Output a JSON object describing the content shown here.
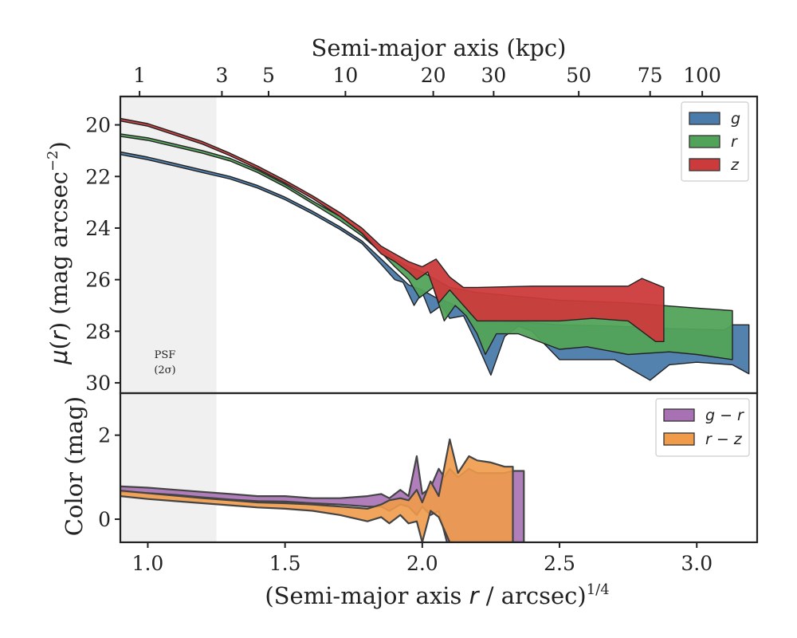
{
  "chart_data": [
    {
      "type": "area",
      "panel": "surface-brightness",
      "title": "",
      "xlabel": "(Semi-major axis r / arcsec)^1/4",
      "ylabel": "μ(r) (mag arcsec⁻²)",
      "top_axis": {
        "label": "Semi-major axis (kpc)",
        "ticks": [
          {
            "label": "1",
            "x": 0.97
          },
          {
            "label": "3",
            "x": 1.27
          },
          {
            "label": "5",
            "x": 1.44
          },
          {
            "label": "10",
            "x": 1.72
          },
          {
            "label": "20",
            "x": 2.04
          },
          {
            "label": "30",
            "x": 2.26
          },
          {
            "label": "50",
            "x": 2.57
          },
          {
            "label": "75",
            "x": 2.83
          },
          {
            "label": "100",
            "x": 3.02
          }
        ]
      },
      "xlim": [
        0.9,
        3.22
      ],
      "ylim": [
        30.4,
        18.9
      ],
      "y_inverted": true,
      "y_ticks": [
        "20",
        "22",
        "24",
        "26",
        "28",
        "30"
      ],
      "x_ticks": [
        "1.0",
        "1.5",
        "2.0",
        "2.5",
        "3.0"
      ],
      "psf_region": {
        "x_max": 1.25,
        "label_line1": "PSF",
        "label_line2": "(2σ)"
      },
      "legend": {
        "position": "top-right"
      },
      "series": [
        {
          "name": "g",
          "color": "#4a7bab",
          "upper": [
            [
              0.9,
              21.05
            ],
            [
              1.0,
              21.25
            ],
            [
              1.1,
              21.5
            ],
            [
              1.2,
              21.75
            ],
            [
              1.3,
              22.0
            ],
            [
              1.4,
              22.35
            ],
            [
              1.5,
              22.8
            ],
            [
              1.6,
              23.35
            ],
            [
              1.7,
              23.95
            ],
            [
              1.78,
              24.5
            ],
            [
              1.85,
              25.2
            ],
            [
              1.9,
              25.7
            ],
            [
              1.95,
              26.2
            ],
            [
              2.0,
              26.4
            ],
            [
              2.05,
              26.7
            ],
            [
              2.1,
              26.9
            ],
            [
              2.15,
              27.2
            ],
            [
              2.2,
              27.5
            ],
            [
              2.3,
              27.6
            ],
            [
              2.5,
              27.75
            ],
            [
              2.7,
              27.8
            ],
            [
              2.9,
              27.9
            ],
            [
              3.1,
              27.95
            ],
            [
              3.13,
              27.75
            ],
            [
              3.19,
              27.75
            ]
          ],
          "lower": [
            [
              0.9,
              21.15
            ],
            [
              1.0,
              21.35
            ],
            [
              1.1,
              21.6
            ],
            [
              1.2,
              21.85
            ],
            [
              1.3,
              22.1
            ],
            [
              1.4,
              22.45
            ],
            [
              1.5,
              22.9
            ],
            [
              1.6,
              23.45
            ],
            [
              1.7,
              24.05
            ],
            [
              1.78,
              24.6
            ],
            [
              1.85,
              25.4
            ],
            [
              1.9,
              26.0
            ],
            [
              1.93,
              26.1
            ],
            [
              1.97,
              27.0
            ],
            [
              2.0,
              26.5
            ],
            [
              2.03,
              27.3
            ],
            [
              2.07,
              27.0
            ],
            [
              2.1,
              27.5
            ],
            [
              2.15,
              27.4
            ],
            [
              2.2,
              28.5
            ],
            [
              2.25,
              29.7
            ],
            [
              2.3,
              28.2
            ],
            [
              2.35,
              27.8
            ],
            [
              2.4,
              28.0
            ],
            [
              2.5,
              29.1
            ],
            [
              2.6,
              29.1
            ],
            [
              2.7,
              29.1
            ],
            [
              2.83,
              29.9
            ],
            [
              2.9,
              29.3
            ],
            [
              3.0,
              29.2
            ],
            [
              3.13,
              29.3
            ],
            [
              3.19,
              29.65
            ]
          ]
        },
        {
          "name": "r",
          "color": "#52a35a",
          "upper": [
            [
              0.9,
              20.35
            ],
            [
              1.0,
              20.5
            ],
            [
              1.1,
              20.75
            ],
            [
              1.2,
              21.0
            ],
            [
              1.3,
              21.3
            ],
            [
              1.4,
              21.75
            ],
            [
              1.5,
              22.3
            ],
            [
              1.6,
              22.95
            ],
            [
              1.7,
              23.55
            ],
            [
              1.78,
              24.15
            ],
            [
              1.85,
              24.8
            ],
            [
              1.9,
              25.2
            ],
            [
              1.95,
              25.5
            ],
            [
              2.0,
              25.7
            ],
            [
              2.05,
              26.0
            ],
            [
              2.1,
              26.3
            ],
            [
              2.2,
              26.5
            ],
            [
              2.3,
              26.6
            ],
            [
              2.5,
              26.8
            ],
            [
              2.75,
              26.9
            ],
            [
              3.0,
              27.1
            ],
            [
              3.13,
              27.2
            ]
          ],
          "lower": [
            [
              0.9,
              20.45
            ],
            [
              1.0,
              20.6
            ],
            [
              1.1,
              20.85
            ],
            [
              1.2,
              21.1
            ],
            [
              1.3,
              21.4
            ],
            [
              1.4,
              21.85
            ],
            [
              1.5,
              22.4
            ],
            [
              1.6,
              23.05
            ],
            [
              1.7,
              23.7
            ],
            [
              1.78,
              24.3
            ],
            [
              1.85,
              24.95
            ],
            [
              1.9,
              25.5
            ],
            [
              1.95,
              26.0
            ],
            [
              1.99,
              26.7
            ],
            [
              2.04,
              26.3
            ],
            [
              2.08,
              27.6
            ],
            [
              2.12,
              27.0
            ],
            [
              2.16,
              27.4
            ],
            [
              2.2,
              28.1
            ],
            [
              2.23,
              28.9
            ],
            [
              2.27,
              28.1
            ],
            [
              2.35,
              28.1
            ],
            [
              2.5,
              28.7
            ],
            [
              2.6,
              28.6
            ],
            [
              2.75,
              28.9
            ],
            [
              2.9,
              28.8
            ],
            [
              3.0,
              28.9
            ],
            [
              3.13,
              29.1
            ]
          ]
        },
        {
          "name": "z",
          "color": "#cc3b3b",
          "upper": [
            [
              0.9,
              19.75
            ],
            [
              1.0,
              19.95
            ],
            [
              1.1,
              20.3
            ],
            [
              1.2,
              20.65
            ],
            [
              1.3,
              21.1
            ],
            [
              1.4,
              21.6
            ],
            [
              1.5,
              22.15
            ],
            [
              1.6,
              22.75
            ],
            [
              1.7,
              23.4
            ],
            [
              1.78,
              24.0
            ],
            [
              1.85,
              24.7
            ],
            [
              1.9,
              25.0
            ],
            [
              1.95,
              25.3
            ],
            [
              2.0,
              25.5
            ],
            [
              2.05,
              25.2
            ],
            [
              2.1,
              25.9
            ],
            [
              2.15,
              26.3
            ],
            [
              2.2,
              26.3
            ],
            [
              2.4,
              26.25
            ],
            [
              2.6,
              26.25
            ],
            [
              2.75,
              26.25
            ],
            [
              2.8,
              25.95
            ],
            [
              2.88,
              26.3
            ]
          ],
          "lower": [
            [
              0.9,
              19.85
            ],
            [
              1.0,
              20.05
            ],
            [
              1.1,
              20.4
            ],
            [
              1.2,
              20.75
            ],
            [
              1.3,
              21.2
            ],
            [
              1.4,
              21.7
            ],
            [
              1.5,
              22.25
            ],
            [
              1.6,
              22.85
            ],
            [
              1.7,
              23.55
            ],
            [
              1.78,
              24.2
            ],
            [
              1.85,
              25.0
            ],
            [
              1.9,
              25.3
            ],
            [
              1.95,
              25.7
            ],
            [
              1.98,
              26.0
            ],
            [
              2.02,
              25.7
            ],
            [
              2.06,
              26.9
            ],
            [
              2.1,
              26.4
            ],
            [
              2.15,
              27.0
            ],
            [
              2.2,
              27.6
            ],
            [
              2.3,
              27.6
            ],
            [
              2.5,
              27.6
            ],
            [
              2.62,
              27.5
            ],
            [
              2.75,
              27.6
            ],
            [
              2.85,
              28.4
            ],
            [
              2.88,
              28.4
            ]
          ]
        }
      ]
    },
    {
      "type": "area",
      "panel": "color-profile",
      "title": "",
      "xlabel": "(Semi-major axis r / arcsec)^1/4",
      "ylabel": "Color (mag)",
      "xlim": [
        0.9,
        3.22
      ],
      "ylim": [
        -0.55,
        3.0
      ],
      "y_ticks": [
        "0",
        "2"
      ],
      "legend": {
        "position": "top-right"
      },
      "series": [
        {
          "name": "g − r",
          "color": "#a771b4",
          "upper": [
            [
              0.9,
              0.78
            ],
            [
              1.0,
              0.75
            ],
            [
              1.1,
              0.7
            ],
            [
              1.2,
              0.65
            ],
            [
              1.3,
              0.6
            ],
            [
              1.4,
              0.55
            ],
            [
              1.5,
              0.55
            ],
            [
              1.6,
              0.5
            ],
            [
              1.7,
              0.5
            ],
            [
              1.8,
              0.55
            ],
            [
              1.85,
              0.6
            ],
            [
              1.88,
              0.5
            ],
            [
              1.92,
              0.7
            ],
            [
              1.95,
              0.55
            ],
            [
              1.98,
              1.5
            ],
            [
              2.0,
              0.6
            ],
            [
              2.03,
              0.75
            ],
            [
              2.06,
              1.2
            ],
            [
              2.08,
              1.0
            ],
            [
              2.1,
              1.2
            ],
            [
              2.13,
              1.0
            ],
            [
              2.17,
              1.2
            ],
            [
              2.2,
              1.1
            ],
            [
              2.25,
              1.1
            ],
            [
              2.3,
              1.1
            ],
            [
              2.33,
              1.15
            ],
            [
              2.37,
              1.15
            ]
          ],
          "lower": [
            [
              0.9,
              0.65
            ],
            [
              1.0,
              0.62
            ],
            [
              1.1,
              0.58
            ],
            [
              1.2,
              0.52
            ],
            [
              1.3,
              0.47
            ],
            [
              1.4,
              0.43
            ],
            [
              1.5,
              0.42
            ],
            [
              1.6,
              0.38
            ],
            [
              1.7,
              0.35
            ],
            [
              1.8,
              0.3
            ],
            [
              1.85,
              0.3
            ],
            [
              1.88,
              0.2
            ],
            [
              1.92,
              0.35
            ],
            [
              1.95,
              0.3
            ],
            [
              1.98,
              0.1
            ],
            [
              2.0,
              0.3
            ],
            [
              2.03,
              0.1
            ],
            [
              2.06,
              0.2
            ],
            [
              2.09,
              -0.55
            ],
            [
              2.12,
              -0.55
            ],
            [
              2.37,
              -0.55
            ]
          ]
        },
        {
          "name": "r − z",
          "color": "#ef9b4a",
          "upper": [
            [
              0.9,
              0.68
            ],
            [
              1.0,
              0.62
            ],
            [
              1.1,
              0.56
            ],
            [
              1.2,
              0.5
            ],
            [
              1.3,
              0.45
            ],
            [
              1.4,
              0.4
            ],
            [
              1.5,
              0.38
            ],
            [
              1.6,
              0.35
            ],
            [
              1.7,
              0.3
            ],
            [
              1.8,
              0.25
            ],
            [
              1.85,
              0.35
            ],
            [
              1.88,
              0.45
            ],
            [
              1.92,
              0.5
            ],
            [
              1.95,
              0.45
            ],
            [
              1.98,
              0.7
            ],
            [
              2.0,
              0.4
            ],
            [
              2.03,
              0.9
            ],
            [
              2.06,
              0.55
            ],
            [
              2.1,
              1.9
            ],
            [
              2.13,
              1.1
            ],
            [
              2.17,
              1.5
            ],
            [
              2.2,
              1.4
            ],
            [
              2.25,
              1.35
            ],
            [
              2.3,
              1.25
            ],
            [
              2.33,
              1.25
            ]
          ],
          "lower": [
            [
              0.9,
              0.55
            ],
            [
              1.0,
              0.48
            ],
            [
              1.1,
              0.43
            ],
            [
              1.2,
              0.38
            ],
            [
              1.3,
              0.33
            ],
            [
              1.4,
              0.28
            ],
            [
              1.5,
              0.25
            ],
            [
              1.6,
              0.2
            ],
            [
              1.7,
              0.1
            ],
            [
              1.8,
              -0.05
            ],
            [
              1.85,
              0.05
            ],
            [
              1.88,
              -0.1
            ],
            [
              1.92,
              0.1
            ],
            [
              1.95,
              -0.1
            ],
            [
              1.98,
              -0.05
            ],
            [
              2.0,
              -0.55
            ],
            [
              2.03,
              0.2
            ],
            [
              2.06,
              0.05
            ],
            [
              2.1,
              -0.55
            ],
            [
              2.33,
              -0.55
            ]
          ]
        }
      ]
    }
  ]
}
